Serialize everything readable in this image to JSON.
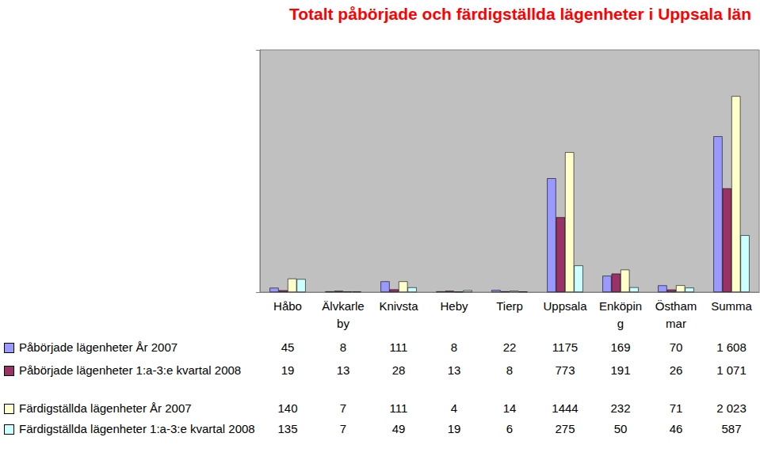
{
  "chart_data": {
    "type": "bar",
    "title": "Totalt påbörjade och färdigställda lägenheter i Uppsala län",
    "categories": [
      "Håbo",
      "Älvkarleby",
      "Knivsta",
      "Heby",
      "Tierp",
      "Uppsala",
      "Enköping",
      "Östhammar",
      "Summa"
    ],
    "series": [
      {
        "name": "Påbörjade lägenheter År 2007",
        "color": "#9999ff",
        "values": [
          45,
          8,
          111,
          8,
          22,
          1175,
          169,
          70,
          1608
        ],
        "value_labels": [
          "45",
          "8",
          "111",
          "8",
          "22",
          "1175",
          "169",
          "70",
          "1 608"
        ]
      },
      {
        "name": "Påbörjade lägenheter 1:a-3:e kvartal 2008",
        "color": "#993366",
        "values": [
          19,
          13,
          28,
          13,
          8,
          773,
          191,
          26,
          1071
        ],
        "value_labels": [
          "19",
          "13",
          "28",
          "13",
          "8",
          "773",
          "191",
          "26",
          "1 071"
        ]
      },
      {
        "name": "Färdigställda lägenheter År 2007",
        "color": "#ffffcc",
        "values": [
          140,
          7,
          111,
          4,
          14,
          1444,
          232,
          71,
          2023
        ],
        "value_labels": [
          "140",
          "7",
          "111",
          "4",
          "14",
          "1444",
          "232",
          "71",
          "2 023"
        ]
      },
      {
        "name": "Färdigställda lägenheter 1:a-3:e kvartal 2008",
        "color": "#ccffff",
        "values": [
          135,
          7,
          49,
          19,
          6,
          275,
          50,
          46,
          587
        ],
        "value_labels": [
          "135",
          "7",
          "49",
          "19",
          "6",
          "275",
          "50",
          "46",
          "587"
        ]
      }
    ],
    "ylim": [
      0,
      2500
    ],
    "yticks": [
      0,
      2500
    ],
    "grid": false,
    "tick_labels": "x"
  }
}
